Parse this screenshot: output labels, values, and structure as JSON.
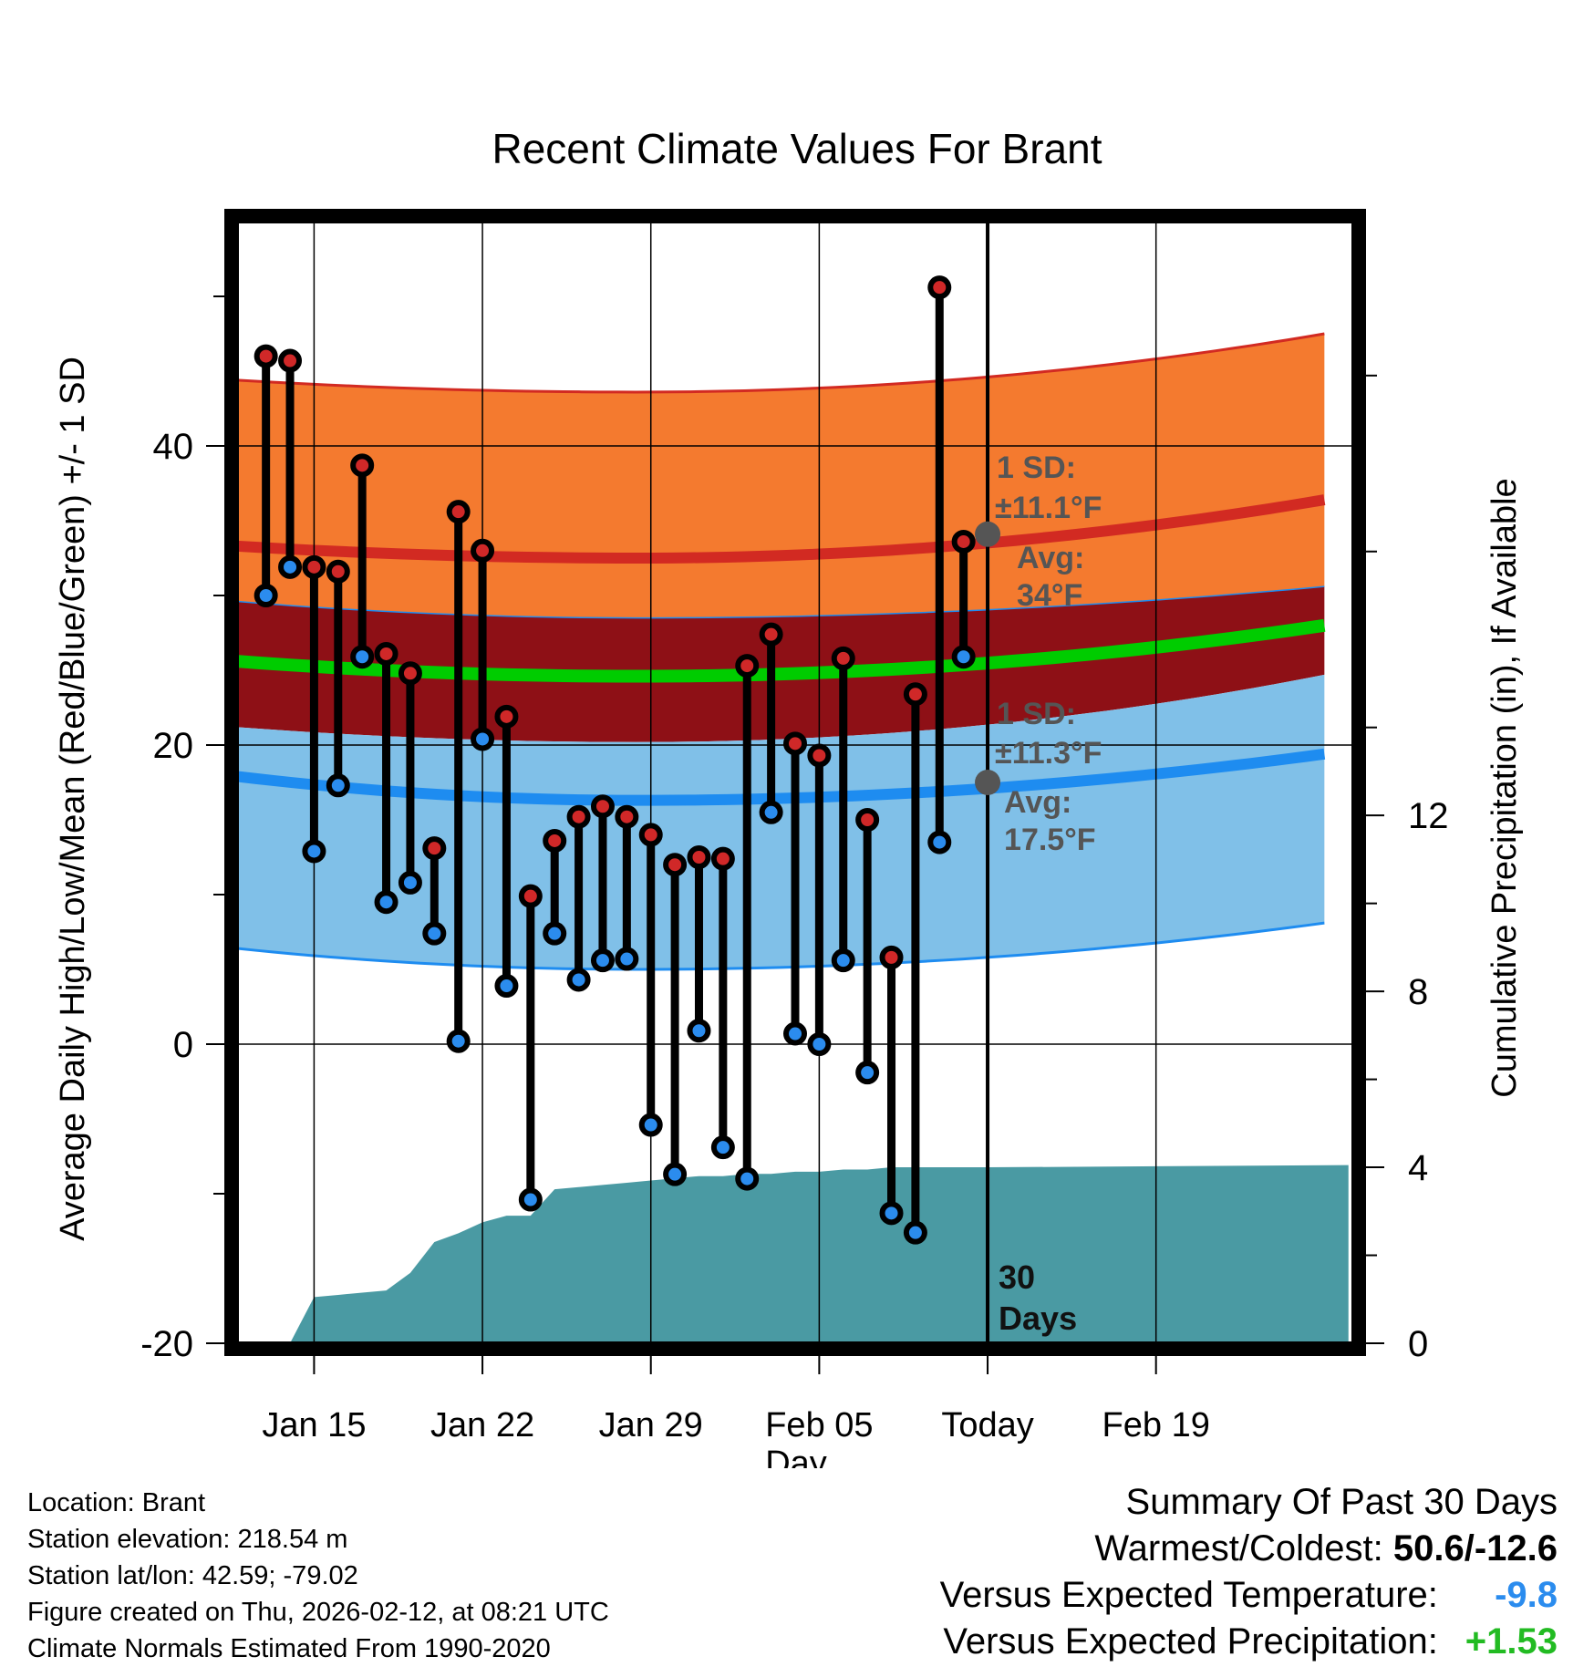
{
  "chart_data": {
    "type": "line",
    "title": "Recent Climate Values For Brant",
    "xlabel": "Day",
    "ylabel": "Average Daily High/Low/Mean (Red/Blue/Green) +/- 1 SD",
    "y2label": "Cumulative Precipitation (in), If Available",
    "ylim": [
      -20,
      55
    ],
    "y2lim": [
      0,
      25.5
    ],
    "xlim": [
      -3.2,
      43.2
    ],
    "yticks": [
      "-20",
      "0",
      "20",
      "40"
    ],
    "y2ticks": [
      "0",
      "4",
      "8",
      "12"
    ],
    "xticks": [
      {
        "day": 0,
        "label": "Jan 15"
      },
      {
        "day": 7,
        "label": "Jan 22"
      },
      {
        "day": 14,
        "label": "Jan 29"
      },
      {
        "day": 21,
        "label": "Feb 05"
      },
      {
        "day": 28,
        "label": "Today"
      },
      {
        "day": 35,
        "label": "Feb 19"
      }
    ],
    "today_day": 28,
    "window_label_line1": "30",
    "window_label_line2": "Days",
    "observed": {
      "days": [
        -2,
        -1,
        0,
        1,
        2,
        3,
        4,
        5,
        6,
        7,
        8,
        9,
        10,
        11,
        12,
        13,
        14,
        15,
        16,
        17,
        18,
        19,
        20,
        21,
        22,
        23,
        24,
        25,
        26,
        27
      ],
      "highs": [
        46.0,
        45.7,
        31.9,
        31.6,
        38.7,
        26.1,
        24.8,
        13.1,
        35.6,
        33.0,
        21.9,
        9.9,
        13.6,
        15.2,
        15.9,
        15.2,
        14.0,
        12.0,
        12.5,
        12.4,
        25.3,
        27.4,
        20.1,
        19.3,
        25.8,
        15.0,
        5.8,
        23.4,
        50.6,
        33.6
      ],
      "lows": [
        30.0,
        31.9,
        12.9,
        17.3,
        25.9,
        9.5,
        10.8,
        7.4,
        0.2,
        20.4,
        3.9,
        -10.4,
        7.4,
        4.3,
        5.6,
        5.7,
        -5.4,
        -8.7,
        0.9,
        -6.9,
        -9.0,
        15.5,
        0.7,
        0.0,
        5.6,
        -1.9,
        -11.3,
        -12.6,
        13.5,
        25.9
      ]
    },
    "normals": {
      "high_avg_ends": [
        33.3,
        32.5,
        36.4
      ],
      "high_upper_ends": [
        44.4,
        43.6,
        47.5
      ],
      "high_lower_ends": [
        29.6,
        28.5,
        30.6
      ],
      "mean_avg_ends": [
        25.6,
        24.6,
        28.0
      ],
      "mean_upper_ends": [
        26.5,
        25.5,
        28.9
      ],
      "mean_lower_ends": [
        21.2,
        20.2,
        24.7
      ],
      "low_avg_ends": [
        17.9,
        16.3,
        19.4
      ],
      "low_lower_ends": [
        6.4,
        5.0,
        8.1
      ],
      "low_upper_ends": [
        21.2,
        20.2,
        24.7
      ]
    },
    "precip_cumulative": {
      "days": [
        -2,
        -1,
        0,
        1,
        2,
        3,
        4,
        5,
        6,
        7,
        8,
        9,
        10,
        11,
        12,
        13,
        14,
        15,
        16,
        17,
        18,
        19,
        20,
        21,
        22,
        23,
        24,
        25,
        26,
        27,
        28,
        43
      ],
      "values": [
        0.0,
        0.0,
        1.05,
        1.1,
        1.15,
        1.2,
        1.6,
        2.3,
        2.5,
        2.75,
        2.9,
        2.9,
        3.5,
        3.55,
        3.6,
        3.65,
        3.7,
        3.75,
        3.8,
        3.8,
        3.85,
        3.85,
        3.9,
        3.9,
        3.95,
        3.95,
        4.0,
        4.0,
        4.0,
        4.0,
        4.0,
        4.05
      ]
    },
    "annotations": {
      "high_sd": "1 SD:",
      "high_sd_value": "±11.1°F",
      "high_avg": "Avg:",
      "high_avg_value": "34°F",
      "high_avg_num": 34.1,
      "low_sd": "1 SD:",
      "low_sd_value": "±11.3°F",
      "low_avg": "Avg:",
      "low_avg_value": "17.5°F",
      "low_avg_num": 17.5
    },
    "colors": {
      "high_band": "#f47a2f",
      "high_line": "#d22a22",
      "mean_band": "#8e1016",
      "mean_line": "#00cc00",
      "low_band": "#80c0e8",
      "low_line": "#1e8cf0",
      "precip": "#4a9aa3",
      "high_dot": "#d02828",
      "low_dot": "#2b8cee",
      "annotation": "#555555"
    }
  },
  "footer": {
    "location": "Location: Brant",
    "elevation": "Station elevation: 218.54 m",
    "latlon": "Station lat/lon: 42.59; -79.02",
    "created": "Figure created on Thu, 2026-02-12, at 08:21 UTC",
    "normals": "Climate Normals Estimated From 1990-2020"
  },
  "summary": {
    "title": "Summary Of Past 30 Days",
    "warm_cold_label": "Warmest/Coldest:",
    "warm_cold_value": "50.6/-12.6",
    "temp_label": "Versus Expected Temperature:",
    "temp_value": "-9.8",
    "temp_color": "#2b8cee",
    "precip_label": "Versus Expected Precipitation:",
    "precip_value": "+1.53",
    "precip_color": "#22bb22"
  }
}
